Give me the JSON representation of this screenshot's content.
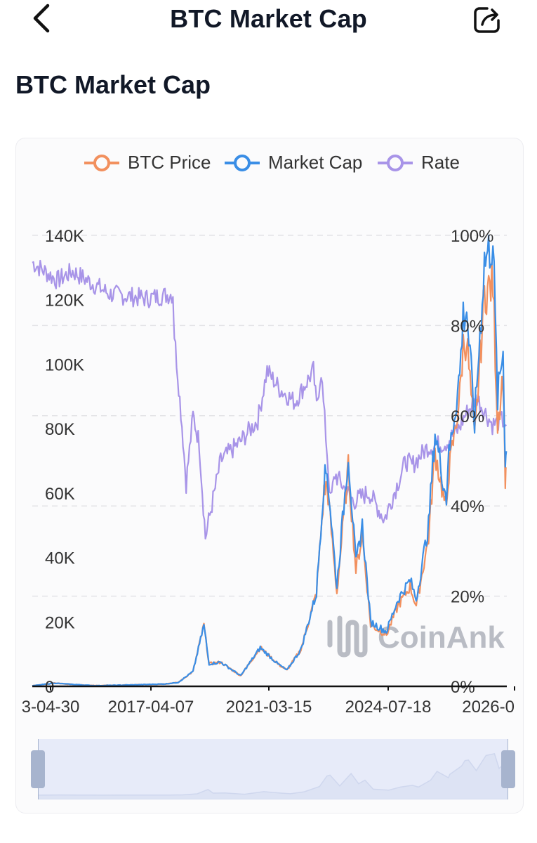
{
  "header": {
    "title": "BTC Market Cap",
    "back_icon": "chevron-left-icon",
    "share_icon": "share-icon"
  },
  "section": {
    "title": "BTC Market Cap"
  },
  "watermark": {
    "text": "CoinAnk"
  },
  "colors": {
    "btc_price": "#f2905e",
    "market_cap": "#3a8ee6",
    "rate": "#a894e8",
    "grid": "#e3e3e6",
    "axis": "#111111",
    "slider_fill": "#e7ebf9",
    "slider_handle": "#a7b4ce"
  },
  "chart_data": {
    "type": "line",
    "legend": [
      "BTC Price",
      "Market Cap",
      "Rate"
    ],
    "legend_position": "top-center",
    "grid": true,
    "x_tick_labels": [
      "3-04-30",
      "2017-04-07",
      "2021-03-15",
      "2024-07-18",
      "2026-0"
    ],
    "y_left": {
      "ticks": [
        "0",
        "20K",
        "40K",
        "60K",
        "80K",
        "100K",
        "120K",
        "140K"
      ],
      "ylim": [
        0,
        140000
      ]
    },
    "y_right": {
      "ticks": [
        "0%",
        "20%",
        "40%",
        "60%",
        "80%",
        "100%"
      ],
      "ylim": [
        0,
        100
      ]
    },
    "x_range": [
      "2013-04-30",
      "2026-02"
    ],
    "series": [
      {
        "name": "BTC Price",
        "axis": "left",
        "points": [
          [
            "2013-04-30",
            130
          ],
          [
            "2013-12-01",
            1000
          ],
          [
            "2014-06-01",
            600
          ],
          [
            "2015-01-15",
            200
          ],
          [
            "2016-01-01",
            430
          ],
          [
            "2016-12-01",
            750
          ],
          [
            "2017-04-07",
            1200
          ],
          [
            "2017-09-01",
            4600
          ],
          [
            "2017-12-17",
            19000
          ],
          [
            "2018-02-06",
            7000
          ],
          [
            "2018-06-01",
            7500
          ],
          [
            "2018-12-15",
            3300
          ],
          [
            "2019-06-26",
            12000
          ],
          [
            "2019-12-15",
            7000
          ],
          [
            "2020-03-15",
            5000
          ],
          [
            "2020-08-01",
            11500
          ],
          [
            "2020-12-31",
            29000
          ],
          [
            "2021-03-15",
            60000
          ],
          [
            "2021-04-14",
            63000
          ],
          [
            "2021-07-20",
            29000
          ],
          [
            "2021-11-10",
            68000
          ],
          [
            "2022-01-24",
            36000
          ],
          [
            "2022-03-28",
            47000
          ],
          [
            "2022-06-18",
            19000
          ],
          [
            "2022-11-21",
            16000
          ],
          [
            "2023-03-15",
            25000
          ],
          [
            "2023-07-13",
            31000
          ],
          [
            "2023-09-11",
            25000
          ],
          [
            "2024-01-10",
            46000
          ],
          [
            "2024-03-14",
            73000
          ],
          [
            "2024-07-05",
            54000
          ],
          [
            "2024-07-18",
            64000
          ],
          [
            "2024-11-13",
            90000
          ],
          [
            "2024-12-17",
            106000
          ],
          [
            "2025-01-20",
            108000
          ],
          [
            "2025-04-08",
            76000
          ],
          [
            "2025-07-14",
            122000
          ],
          [
            "2025-10-06",
            125000
          ],
          [
            "2025-11-21",
            82000
          ],
          [
            "2026-01-14",
            97000
          ],
          [
            "2026-02-05",
            65000
          ],
          [
            "2026-02-15",
            68000
          ]
        ]
      },
      {
        "name": "Market Cap",
        "axis": "left",
        "points": [
          [
            "2013-04-30",
            140
          ],
          [
            "2013-12-01",
            1000
          ],
          [
            "2014-06-01",
            600
          ],
          [
            "2015-01-15",
            200
          ],
          [
            "2016-01-01",
            430
          ],
          [
            "2016-12-01",
            750
          ],
          [
            "2017-04-07",
            1200
          ],
          [
            "2017-09-01",
            4600
          ],
          [
            "2017-12-17",
            19000
          ],
          [
            "2018-02-06",
            7000
          ],
          [
            "2018-06-01",
            7500
          ],
          [
            "2018-12-15",
            3300
          ],
          [
            "2019-06-26",
            12000
          ],
          [
            "2019-12-15",
            7000
          ],
          [
            "2020-03-15",
            5000
          ],
          [
            "2020-08-01",
            11500
          ],
          [
            "2020-12-31",
            29000
          ],
          [
            "2021-03-15",
            64000
          ],
          [
            "2021-04-14",
            67000
          ],
          [
            "2021-07-20",
            31000
          ],
          [
            "2021-11-10",
            72000
          ],
          [
            "2022-01-24",
            38000
          ],
          [
            "2022-03-28",
            50000
          ],
          [
            "2022-06-18",
            20000
          ],
          [
            "2022-11-21",
            17000
          ],
          [
            "2023-03-15",
            27000
          ],
          [
            "2023-07-13",
            33000
          ],
          [
            "2023-09-11",
            27000
          ],
          [
            "2024-01-10",
            50000
          ],
          [
            "2024-03-14",
            79000
          ],
          [
            "2024-07-05",
            58000
          ],
          [
            "2024-07-18",
            69000
          ],
          [
            "2024-11-13",
            97000
          ],
          [
            "2024-12-17",
            115000
          ],
          [
            "2025-01-20",
            117000
          ],
          [
            "2025-04-08",
            82000
          ],
          [
            "2025-07-14",
            132000
          ],
          [
            "2025-10-06",
            138000
          ],
          [
            "2025-11-21",
            89000
          ],
          [
            "2026-01-14",
            105000
          ],
          [
            "2026-02-05",
            70000
          ],
          [
            "2026-02-15",
            73000
          ]
        ]
      },
      {
        "name": "Rate",
        "axis": "right",
        "points": [
          [
            "2013-04-30",
            94
          ],
          [
            "2014-01-01",
            90
          ],
          [
            "2014-06-01",
            92
          ],
          [
            "2015-06-01",
            87
          ],
          [
            "2016-06-01",
            86
          ],
          [
            "2017-02-15",
            87
          ],
          [
            "2017-03-01",
            78
          ],
          [
            "2017-05-15",
            58
          ],
          [
            "2017-06-25",
            45
          ],
          [
            "2017-09-01",
            60
          ],
          [
            "2017-11-01",
            54
          ],
          [
            "2018-01-01",
            33
          ],
          [
            "2018-06-01",
            50
          ],
          [
            "2018-12-01",
            54
          ],
          [
            "2019-06-01",
            59
          ],
          [
            "2019-09-01",
            70
          ],
          [
            "2020-01-01",
            66
          ],
          [
            "2020-06-01",
            63
          ],
          [
            "2020-12-01",
            70
          ],
          [
            "2021-01-01",
            62
          ],
          [
            "2021-02-15",
            70
          ],
          [
            "2021-05-19",
            41
          ],
          [
            "2021-07-01",
            47
          ],
          [
            "2022-01-01",
            41
          ],
          [
            "2022-06-01",
            43
          ],
          [
            "2022-11-01",
            37
          ],
          [
            "2023-06-01",
            50
          ],
          [
            "2023-08-01",
            49
          ],
          [
            "2024-01-01",
            53
          ],
          [
            "2024-07-01",
            54
          ],
          [
            "2024-11-01",
            57
          ],
          [
            "2025-01-01",
            60
          ],
          [
            "2025-05-01",
            64
          ],
          [
            "2025-07-14",
            61
          ],
          [
            "2025-10-01",
            58
          ],
          [
            "2026-01-01",
            59
          ],
          [
            "2026-02-15",
            58
          ]
        ]
      }
    ]
  }
}
